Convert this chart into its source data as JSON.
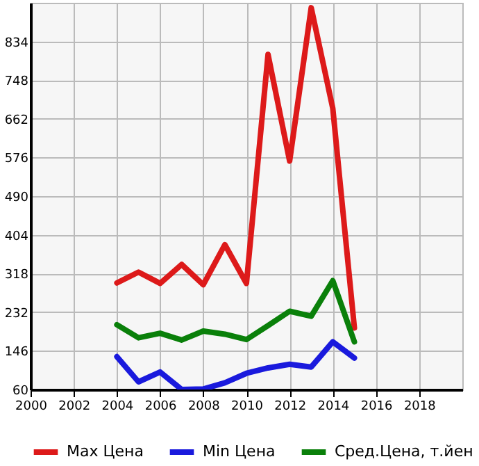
{
  "chart_data": {
    "type": "line",
    "x": [
      2004,
      2005,
      2006,
      2007,
      2008,
      2009,
      2010,
      2011,
      2012,
      2013,
      2014,
      2015
    ],
    "series": [
      {
        "name": "Max Цена",
        "color": "#dd1a1a",
        "values": [
          297,
          321,
          296,
          338,
          293,
          382,
          296,
          805,
          568,
          909,
          685,
          197
        ]
      },
      {
        "name": "Min Цена",
        "color": "#1a1add",
        "values": [
          133,
          77,
          99,
          60,
          61,
          75,
          96,
          108,
          116,
          110,
          166,
          130
        ]
      },
      {
        "name": "Сред.Цена, т.йен",
        "color": "#0a800a",
        "values": [
          204,
          175,
          185,
          170,
          190,
          183,
          171,
          202,
          234,
          223,
          302,
          166
        ]
      }
    ],
    "xlim": [
      2000,
      2020
    ],
    "xticks": [
      2000,
      2002,
      2004,
      2006,
      2008,
      2010,
      2012,
      2014,
      2016,
      2018
    ],
    "ylim": [
      60,
      920
    ],
    "yticks": [
      60,
      146,
      232,
      318,
      404,
      490,
      576,
      662,
      748,
      834
    ],
    "grid": true,
    "legend": "bottom",
    "marker": "none",
    "line_style": "solid"
  }
}
